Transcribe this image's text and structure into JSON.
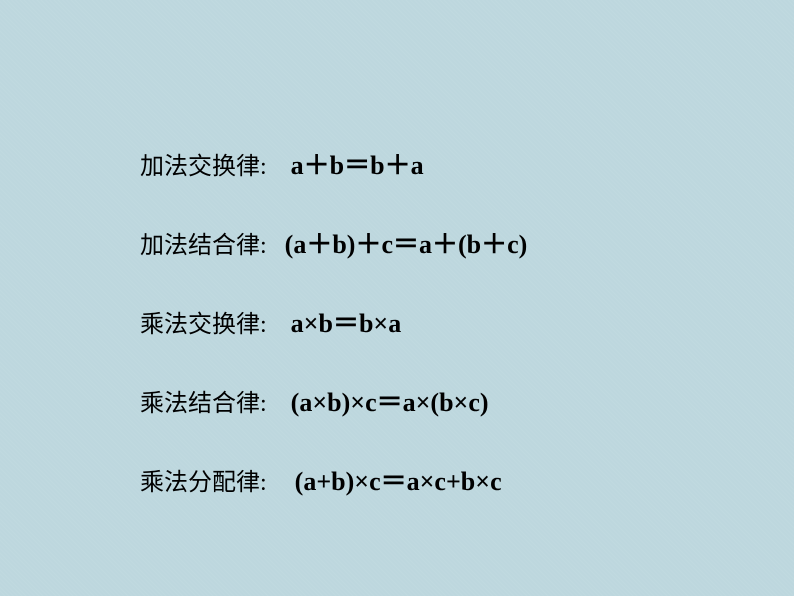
{
  "background_color": "#bdd7de",
  "text_color": "#000000",
  "label_fontsize": 24,
  "formula_fontsize": 26,
  "rows": [
    {
      "label": "加法交换律:",
      "formula": "a＋b＝b＋a"
    },
    {
      "label": "加法结合律:",
      "formula": "(a＋b)＋c＝a＋(b＋c)"
    },
    {
      "label": "乘法交换律:",
      "formula": "a×b＝b×a"
    },
    {
      "label": "乘法结合律:",
      "formula": "(a×b)×c＝a×(b×c)"
    },
    {
      "label": "乘法分配律:",
      "formula": "(a+b)×c＝a×c+b×c"
    }
  ]
}
